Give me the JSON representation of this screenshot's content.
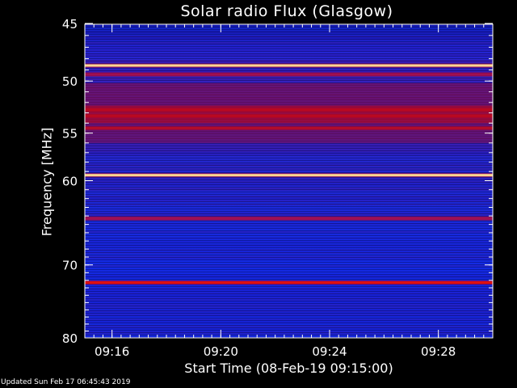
{
  "chart_data": {
    "type": "heatmap",
    "title": "Solar radio Flux (Glasgow)",
    "xlabel": "Start Time (08-Feb-19 09:15:00)",
    "ylabel": "Frequency [MHz]",
    "xlim": [
      "09:15:00",
      "09:30:00"
    ],
    "ylim": [
      45,
      80
    ],
    "x_ticks": [
      "09:16",
      "09:20",
      "09:24",
      "09:28"
    ],
    "y_ticks": [
      45,
      50,
      55,
      60,
      70,
      80
    ],
    "y_scale": "log",
    "colormap": "dark blue to red to yellow-white",
    "colors": {
      "background": "#000000",
      "low": "#1020e0",
      "mid": "#d00010",
      "high": "#ffe0a0"
    },
    "bands_mhz": [
      {
        "f": 48.6,
        "level": "max"
      },
      {
        "f": 49.4,
        "level": "mid"
      },
      {
        "f": 52.7,
        "level": "high"
      },
      {
        "f": 53.3,
        "level": "high"
      },
      {
        "f": 54.5,
        "level": "high"
      },
      {
        "f": 59.4,
        "level": "max"
      },
      {
        "f": 64.3,
        "level": "mid"
      },
      {
        "f": 72.3,
        "level": "high"
      }
    ],
    "grid": false
  },
  "footer": "Updated Sun Feb 17 06:45:43 2019"
}
